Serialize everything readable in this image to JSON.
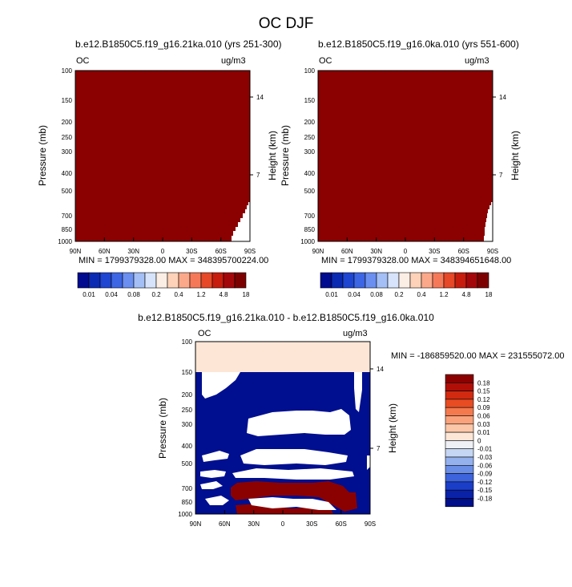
{
  "title": "OC DJF",
  "chart_data": [
    {
      "type": "heatmap",
      "title": "b.e12.B1850C5.f19_g16.21ka.010 (yrs 251-300)",
      "left_label": "OC",
      "right_label": "ug/m3",
      "ylabel": "Pressure (mb)",
      "ylabel_right": "Height (km)",
      "x_ticks": [
        "90N",
        "60N",
        "30N",
        "0",
        "30S",
        "60S",
        "90S"
      ],
      "y_ticks": [
        "100",
        "150",
        "200",
        "250",
        "300",
        "400",
        "500",
        "700",
        "850",
        "1000"
      ],
      "y_ticks_right": [
        "14",
        "7"
      ],
      "stats": "MIN = 1799379328.00   MAX = 348395700224.00",
      "color": "#8b0000"
    },
    {
      "type": "heatmap",
      "title": "b.e12.B1850C5.f19_g16.0ka.010 (yrs 551-600)",
      "left_label": "OC",
      "right_label": "ug/m3",
      "ylabel": "Pressure (mb)",
      "ylabel_right": "Height (km)",
      "x_ticks": [
        "90N",
        "60N",
        "30N",
        "0",
        "30S",
        "60S",
        "90S"
      ],
      "y_ticks": [
        "100",
        "150",
        "200",
        "250",
        "300",
        "400",
        "500",
        "700",
        "850",
        "1000"
      ],
      "y_ticks_right": [
        "14",
        "7"
      ],
      "stats": "MIN = 1799379328.00   MAX = 348394651648.00",
      "color": "#8b0000"
    },
    {
      "type": "heatmap",
      "title": "b.e12.B1850C5.f19_g16.21ka.010 - b.e12.B1850C5.f19_g16.0ka.010",
      "left_label": "OC",
      "right_label": "ug/m3",
      "ylabel": "Pressure (mb)",
      "ylabel_right": "Height (km)",
      "x_ticks": [
        "90N",
        "60N",
        "30N",
        "0",
        "30S",
        "60S",
        "90S"
      ],
      "y_ticks": [
        "100",
        "150",
        "200",
        "250",
        "300",
        "400",
        "500",
        "700",
        "850",
        "1000"
      ],
      "y_ticks_right": [
        "14",
        "7"
      ],
      "stats": "MIN = -186859520.00   MAX = 231555072.00"
    }
  ],
  "colorbar_top": {
    "labels": [
      "0.01",
      "0.04",
      "0.08",
      "0.2",
      "0.4",
      "1.2",
      "4.8",
      "18"
    ],
    "colors": [
      "#000b8f",
      "#0a2ab3",
      "#1e46d2",
      "#3d66e5",
      "#6a8ff0",
      "#a3bff5",
      "#d6e3fa",
      "#fbeee4",
      "#fdd2b8",
      "#fba88a",
      "#f57958",
      "#e64828",
      "#c71d0e",
      "#a4070a",
      "#7d0000"
    ]
  },
  "colorbar_diff": {
    "labels": [
      "0.18",
      "0.15",
      "0.12",
      "0.09",
      "0.06",
      "0.03",
      "0.01",
      "0",
      "-0.01",
      "-0.03",
      "-0.06",
      "-0.09",
      "-0.12",
      "-0.15",
      "-0.18"
    ],
    "colors": [
      "#8b0000",
      "#b00f08",
      "#d12a10",
      "#e84c22",
      "#f47a4e",
      "#f9a27c",
      "#fcc7a9",
      "#fde6d6",
      "#eef0f5",
      "#c5d6f4",
      "#94b1ee",
      "#6a8ee6",
      "#3d64dc",
      "#1b3ec9",
      "#0a22a8",
      "#00108a"
    ]
  },
  "colors": {
    "positive": "#8b0000",
    "negative": "#000f8f",
    "small_positive": "#fde6d6"
  }
}
